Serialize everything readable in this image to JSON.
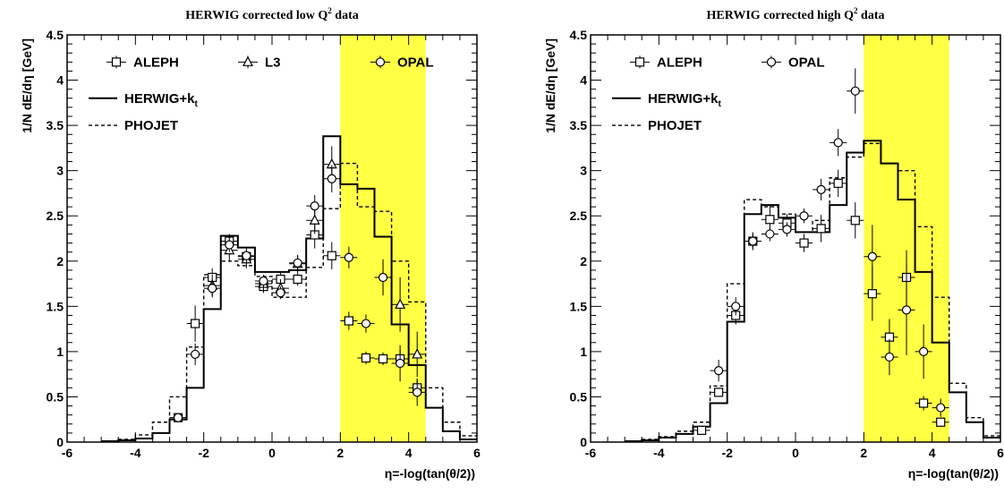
{
  "chart_data": [
    {
      "type": "line",
      "title_main": "HERWIG corrected low Q",
      "title_sup": "2",
      "title_tail": " data",
      "xlabel": "η=-log(tan(θ/2))",
      "ylabel": "1/N dE/dη [GeV]",
      "xlim": [
        -6,
        6
      ],
      "ylim": [
        0,
        4.5
      ],
      "x_ticks": [
        "-6",
        "-4",
        "-2",
        "0",
        "2",
        "4",
        "6"
      ],
      "y_ticks": [
        "0",
        "0.5",
        "1",
        "1.5",
        "2",
        "2.5",
        "3",
        "3.5",
        "4",
        "4.5"
      ],
      "shaded_band": {
        "from": 2,
        "to": 4.5,
        "color": "#ffff44"
      },
      "legend": {
        "markers": [
          {
            "label": "ALEPH",
            "marker": "square"
          },
          {
            "label": "L3",
            "marker": "triangle"
          },
          {
            "label": "OPAL",
            "marker": "circle"
          }
        ],
        "lines": [
          {
            "label": "HERWIG+k",
            "sub": "t",
            "style": "solid"
          },
          {
            "label": "PHOJET",
            "style": "dashed"
          }
        ]
      },
      "series": [
        {
          "name": "HERWIG+k_t",
          "kind": "step",
          "style": "solid",
          "edges": [
            -5,
            -4.5,
            -4,
            -3.5,
            -3,
            -2.5,
            -2,
            -1.5,
            -1,
            -0.5,
            0,
            0.5,
            1,
            1.5,
            2,
            2.5,
            3,
            3.5,
            4,
            4.5,
            5,
            5.5,
            6
          ],
          "values": [
            0.01,
            0.02,
            0.04,
            0.1,
            0.25,
            0.6,
            1.47,
            2.28,
            2.15,
            1.88,
            1.88,
            1.9,
            2.25,
            3.38,
            2.85,
            2.8,
            2.27,
            1.3,
            0.85,
            0.38,
            0.12,
            0.03
          ]
        },
        {
          "name": "PHOJET",
          "kind": "step",
          "style": "dashed",
          "edges": [
            -5,
            -4.5,
            -4,
            -3.5,
            -3,
            -2.5,
            -2,
            -1.5,
            -1,
            -0.5,
            0,
            0.5,
            1,
            1.5,
            2,
            2.5,
            3,
            3.5,
            4,
            4.5,
            5,
            5.5,
            6
          ],
          "values": [
            0.01,
            0.03,
            0.08,
            0.22,
            0.5,
            1.05,
            1.85,
            2.0,
            1.95,
            1.83,
            1.6,
            1.6,
            1.93,
            2.58,
            3.08,
            2.6,
            2.55,
            2.0,
            1.55,
            0.6,
            0.22,
            0.07
          ]
        },
        {
          "name": "ALEPH",
          "kind": "points",
          "marker": "square",
          "points": [
            [
              -2.75,
              0.27,
              0.03
            ],
            [
              -2.25,
              1.31,
              0.2
            ],
            [
              -1.75,
              1.82,
              0.1
            ],
            [
              -1.25,
              2.22,
              0.08
            ],
            [
              -0.75,
              2.05,
              0.07
            ],
            [
              -0.25,
              1.72,
              0.07
            ],
            [
              0.25,
              1.8,
              0.07
            ],
            [
              0.75,
              1.8,
              0.07
            ],
            [
              1.25,
              2.29,
              0.15
            ],
            [
              1.75,
              2.06,
              0.15
            ],
            [
              2.25,
              1.34,
              0.1
            ],
            [
              2.75,
              0.93,
              0.07
            ],
            [
              3.25,
              0.92,
              0.07
            ],
            [
              3.75,
              0.92,
              0.1
            ],
            [
              4.25,
              0.6,
              0.1
            ]
          ]
        },
        {
          "name": "L3",
          "kind": "points",
          "marker": "triangle",
          "points": [
            [
              -1.75,
              1.73,
              0.12
            ],
            [
              -1.25,
              2.12,
              0.12
            ],
            [
              -0.75,
              2.02,
              0.1
            ],
            [
              -0.25,
              1.75,
              0.1
            ],
            [
              0.25,
              1.7,
              0.1
            ],
            [
              0.75,
              1.97,
              0.1
            ],
            [
              1.25,
              2.45,
              0.15
            ],
            [
              1.75,
              3.07,
              0.2
            ],
            [
              3.75,
              1.52,
              0.3
            ],
            [
              4.25,
              0.97,
              0.25
            ]
          ]
        },
        {
          "name": "OPAL",
          "kind": "points",
          "marker": "circle",
          "points": [
            [
              -2.75,
              0.27,
              0.03
            ],
            [
              -2.25,
              0.97,
              0.12
            ],
            [
              -1.75,
              1.7,
              0.1
            ],
            [
              -1.25,
              2.18,
              0.08
            ],
            [
              -0.75,
              2.06,
              0.08
            ],
            [
              -0.25,
              1.78,
              0.07
            ],
            [
              0.25,
              1.65,
              0.07
            ],
            [
              0.75,
              1.98,
              0.08
            ],
            [
              1.25,
              2.61,
              0.12
            ],
            [
              1.75,
              2.91,
              0.15
            ],
            [
              2.25,
              2.04,
              0.12
            ],
            [
              2.75,
              1.31,
              0.1
            ],
            [
              3.25,
              1.82,
              0.2
            ],
            [
              3.75,
              0.87,
              0.2
            ],
            [
              4.25,
              0.55,
              0.15
            ]
          ]
        }
      ]
    },
    {
      "type": "line",
      "title_main": "HERWIG corrected high Q",
      "title_sup": "2",
      "title_tail": " data",
      "xlabel": "η=-log(tan(θ/2))",
      "ylabel": "1/N dE/dη [GeV]",
      "xlim": [
        -6,
        6
      ],
      "ylim": [
        0,
        4.5
      ],
      "x_ticks": [
        "-6",
        "-4",
        "-2",
        "0",
        "2",
        "4",
        "6"
      ],
      "y_ticks": [
        "0",
        "0.5",
        "1",
        "1.5",
        "2",
        "2.5",
        "3",
        "3.5",
        "4",
        "4.5"
      ],
      "shaded_band": {
        "from": 2,
        "to": 4.5,
        "color": "#ffff44"
      },
      "legend": {
        "markers": [
          {
            "label": "ALEPH",
            "marker": "square"
          },
          {
            "label": "OPAL",
            "marker": "circle"
          }
        ],
        "lines": [
          {
            "label": "HERWIG+k",
            "sub": "t",
            "style": "solid"
          },
          {
            "label": "PHOJET",
            "style": "dashed"
          }
        ]
      },
      "series": [
        {
          "name": "HERWIG+k_t",
          "kind": "step",
          "style": "solid",
          "edges": [
            -5,
            -4.5,
            -4,
            -3.5,
            -3,
            -2.5,
            -2,
            -1.5,
            -1,
            -0.5,
            0,
            0.5,
            1,
            1.5,
            2,
            2.5,
            3,
            3.5,
            4,
            4.5,
            5,
            5.5,
            6
          ],
          "values": [
            0.01,
            0.02,
            0.05,
            0.09,
            0.17,
            0.43,
            1.33,
            2.52,
            2.62,
            2.48,
            2.32,
            2.32,
            2.62,
            3.2,
            3.33,
            3.08,
            2.68,
            1.88,
            1.1,
            0.55,
            0.22,
            0.05
          ]
        },
        {
          "name": "PHOJET",
          "kind": "step",
          "style": "dashed",
          "edges": [
            -5,
            -4.5,
            -4,
            -3.5,
            -3,
            -2.5,
            -2,
            -1.5,
            -1,
            -0.5,
            0,
            0.5,
            1,
            1.5,
            2,
            2.5,
            3,
            3.5,
            4,
            4.5,
            5,
            5.5,
            6
          ],
          "values": [
            0.01,
            0.03,
            0.06,
            0.12,
            0.22,
            0.62,
            1.75,
            2.68,
            2.6,
            2.52,
            2.32,
            2.45,
            2.92,
            3.15,
            3.3,
            3.08,
            3.0,
            2.38,
            1.6,
            0.65,
            0.27,
            0.07
          ]
        },
        {
          "name": "ALEPH",
          "kind": "points",
          "marker": "square",
          "points": [
            [
              -2.75,
              0.13,
              0.03
            ],
            [
              -2.25,
              0.55,
              0.05
            ],
            [
              -1.75,
              1.4,
              0.1
            ],
            [
              -1.25,
              2.22,
              0.1
            ],
            [
              -0.75,
              2.46,
              0.15
            ],
            [
              -0.25,
              2.42,
              0.1
            ],
            [
              0.25,
              2.2,
              0.1
            ],
            [
              0.75,
              2.36,
              0.15
            ],
            [
              1.25,
              2.86,
              0.15
            ],
            [
              1.75,
              2.45,
              0.2
            ],
            [
              2.25,
              1.64,
              0.3
            ],
            [
              2.75,
              1.16,
              0.2
            ],
            [
              3.25,
              1.82,
              0.3
            ],
            [
              3.75,
              0.43,
              0.08
            ],
            [
              4.25,
              0.22,
              0.05
            ]
          ]
        },
        {
          "name": "OPAL",
          "kind": "points",
          "marker": "circle",
          "points": [
            [
              -2.25,
              0.79,
              0.12
            ],
            [
              -1.75,
              1.5,
              0.1
            ],
            [
              -1.25,
              2.22,
              0.08
            ],
            [
              -0.75,
              2.3,
              0.08
            ],
            [
              -0.25,
              2.35,
              0.08
            ],
            [
              0.25,
              2.5,
              0.08
            ],
            [
              0.75,
              2.79,
              0.12
            ],
            [
              1.25,
              3.31,
              0.15
            ],
            [
              1.75,
              3.88,
              0.25
            ],
            [
              2.25,
              2.05,
              0.35
            ],
            [
              2.75,
              0.94,
              0.2
            ],
            [
              3.25,
              1.46,
              0.5
            ],
            [
              3.75,
              1.0,
              0.3
            ],
            [
              4.25,
              0.38,
              0.1
            ]
          ]
        }
      ]
    }
  ]
}
